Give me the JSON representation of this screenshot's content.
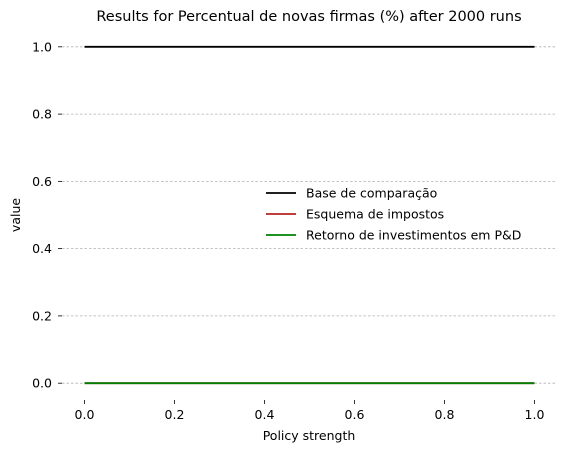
{
  "chart_data": {
    "type": "line",
    "title": "Results for Percentual de novas firmas (%) after 2000 runs",
    "xlabel": "Policy strength",
    "ylabel": "value",
    "xlim": [
      -0.05,
      1.05
    ],
    "ylim": [
      -0.05,
      1.05
    ],
    "xticks": [
      0.0,
      0.2,
      0.4,
      0.6,
      0.8,
      1.0
    ],
    "xtick_labels": [
      "0.0",
      "0.2",
      "0.4",
      "0.6",
      "0.8",
      "1.0"
    ],
    "yticks": [
      0.0,
      0.2,
      0.4,
      0.6,
      0.8,
      1.0
    ],
    "ytick_labels": [
      "0.0",
      "0.2",
      "0.4",
      "0.6",
      "0.8",
      "1.0"
    ],
    "grid": "y-dashed",
    "legend_position": "right",
    "series": [
      {
        "name": "Base de comparação",
        "color": "#000000",
        "x": [
          0.0,
          1.0
        ],
        "y": [
          1.0,
          1.0
        ]
      },
      {
        "name": "Esquema de impostos",
        "color": "#b22222",
        "x": [
          0.0,
          1.0
        ],
        "y": [
          0.0,
          0.0
        ]
      },
      {
        "name": "Retorno de investimentos em P&D",
        "color": "#008000",
        "x": [
          0.0,
          1.0
        ],
        "y": [
          0.0,
          0.0
        ]
      }
    ]
  }
}
